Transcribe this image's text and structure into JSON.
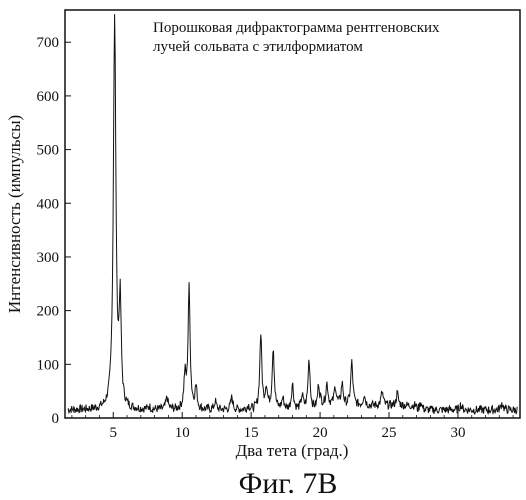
{
  "chart_data": {
    "type": "line",
    "title_lines": [
      "Порошковая дифрактограмма рентгеновских",
      "лучей сольвата с этилформиатом"
    ],
    "xlabel": "Два тета (град.)",
    "ylabel": "Интенсивность (импульсы)",
    "xlim": [
      1.5,
      34.5
    ],
    "ylim": [
      0,
      760
    ],
    "xticks": [
      5,
      10,
      15,
      20,
      25,
      30
    ],
    "yticks": [
      0,
      100,
      200,
      300,
      400,
      500,
      600,
      700
    ],
    "grid": false,
    "baseline": 15,
    "peaks": [
      {
        "x": 5.1,
        "y": 745
      },
      {
        "x": 5.5,
        "y": 200
      },
      {
        "x": 7.6,
        "y": 20
      },
      {
        "x": 8.9,
        "y": 38
      },
      {
        "x": 10.2,
        "y": 75
      },
      {
        "x": 10.5,
        "y": 240
      },
      {
        "x": 11.0,
        "y": 55
      },
      {
        "x": 12.4,
        "y": 30
      },
      {
        "x": 13.6,
        "y": 38
      },
      {
        "x": 14.8,
        "y": 22
      },
      {
        "x": 15.7,
        "y": 155
      },
      {
        "x": 16.1,
        "y": 55
      },
      {
        "x": 16.6,
        "y": 130
      },
      {
        "x": 17.3,
        "y": 35
      },
      {
        "x": 18.0,
        "y": 62
      },
      {
        "x": 18.7,
        "y": 40
      },
      {
        "x": 19.2,
        "y": 108
      },
      {
        "x": 19.9,
        "y": 62
      },
      {
        "x": 20.5,
        "y": 55
      },
      {
        "x": 21.1,
        "y": 50
      },
      {
        "x": 21.6,
        "y": 55
      },
      {
        "x": 22.3,
        "y": 95
      },
      {
        "x": 23.2,
        "y": 35
      },
      {
        "x": 24.5,
        "y": 40
      },
      {
        "x": 25.6,
        "y": 38
      },
      {
        "x": 27.3,
        "y": 30
      },
      {
        "x": 30.2,
        "y": 25
      },
      {
        "x": 33.2,
        "y": 28
      }
    ]
  },
  "caption": "Фиг. 7В"
}
